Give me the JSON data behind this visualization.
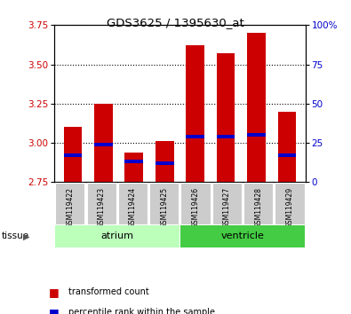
{
  "title": "GDS3625 / 1395630_at",
  "samples": [
    "GSM119422",
    "GSM119423",
    "GSM119424",
    "GSM119425",
    "GSM119426",
    "GSM119427",
    "GSM119428",
    "GSM119429"
  ],
  "bar_tops": [
    3.1,
    3.25,
    2.94,
    3.01,
    3.62,
    3.57,
    3.7,
    3.2
  ],
  "bar_bottom": 2.75,
  "blue_values": [
    2.92,
    2.99,
    2.88,
    2.87,
    3.04,
    3.04,
    3.05,
    2.92
  ],
  "ylim_left": [
    2.75,
    3.75
  ],
  "ylim_right": [
    0,
    100
  ],
  "yticks_left": [
    2.75,
    3.0,
    3.25,
    3.5,
    3.75
  ],
  "yticks_right": [
    0,
    25,
    50,
    75,
    100
  ],
  "ytick_labels_right": [
    "0",
    "25",
    "50",
    "75",
    "100%"
  ],
  "groups": [
    {
      "name": "atrium",
      "indices": [
        0,
        1,
        2,
        3
      ],
      "color": "#bbffbb"
    },
    {
      "name": "ventricle",
      "indices": [
        4,
        5,
        6,
        7
      ],
      "color": "#44cc44"
    }
  ],
  "bar_color": "#cc0000",
  "blue_color": "#0000cc",
  "bar_width": 0.6,
  "background_color": "#ffffff",
  "plot_bg_color": "#ffffff",
  "tick_bg_color": "#cccccc",
  "legend_items": [
    {
      "color": "#cc0000",
      "label": "transformed count"
    },
    {
      "color": "#0000cc",
      "label": "percentile rank within the sample"
    }
  ],
  "left_label_color": "#cc0000",
  "right_label_color": "#0000cc",
  "tissue_label": "tissue"
}
